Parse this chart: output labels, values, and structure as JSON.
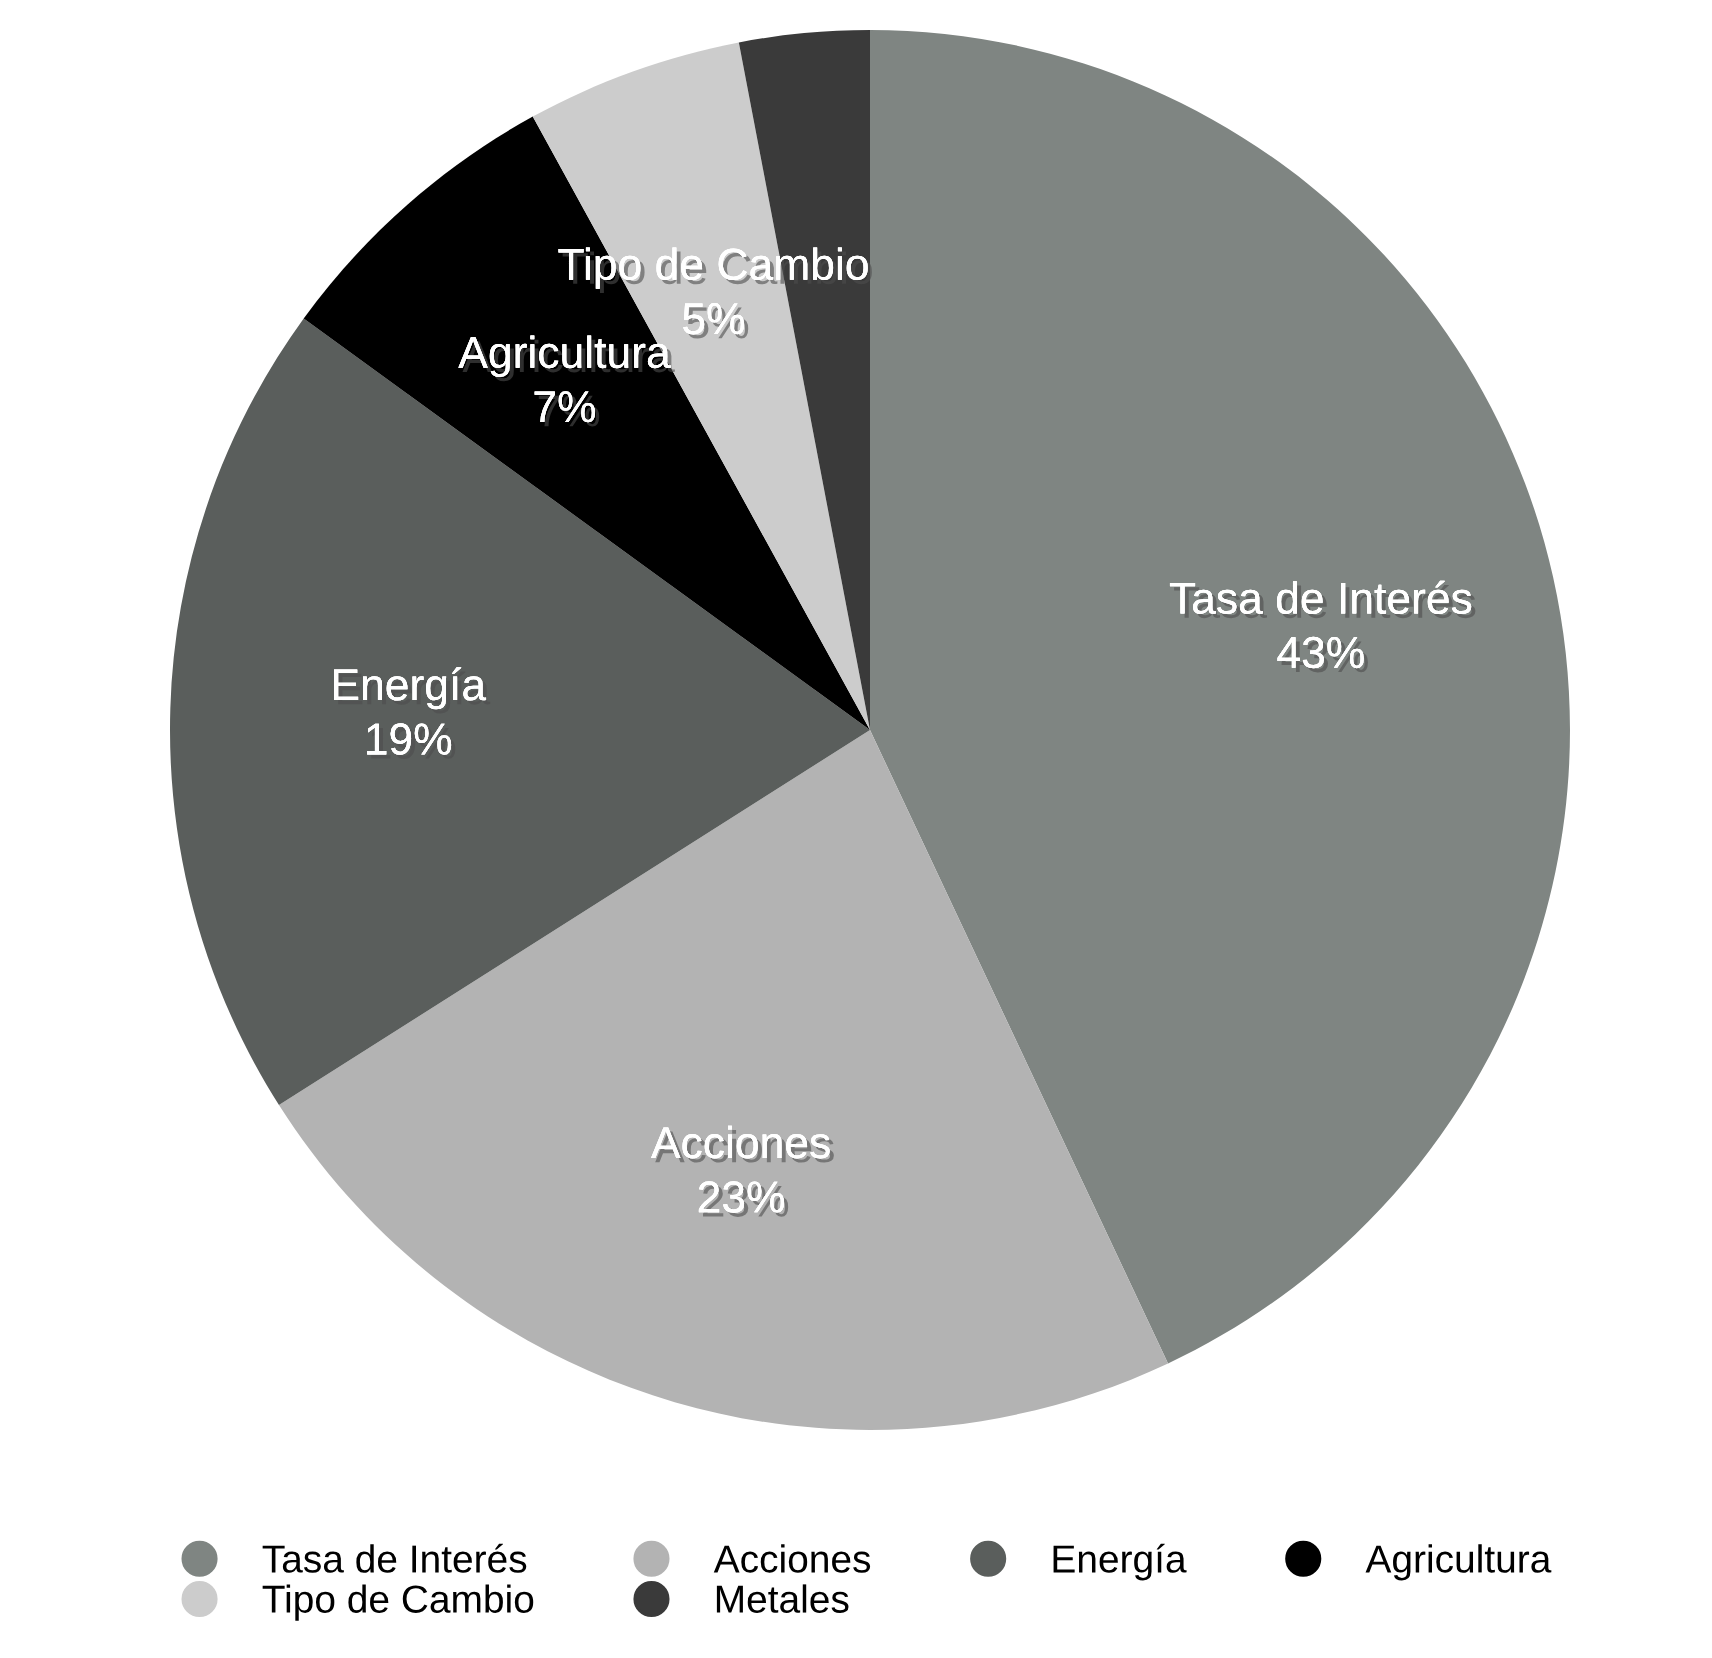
{
  "chart_data": {
    "type": "pie",
    "categories": [
      "Tasa de Interés",
      "Acciones",
      "Energía",
      "Agricultura",
      "Tipo de Cambio",
      "Metales"
    ],
    "values": [
      43,
      23,
      19,
      7,
      5,
      3
    ],
    "colors": [
      "#7f8582",
      "#b3b3b3",
      "#5a5e5c",
      "#000000",
      "#cccccc",
      "#3a3a3a"
    ],
    "value_labels": [
      "Tasa de Interés\n43%",
      "Acciones\n23%",
      "Energía\n19%",
      "Agricultura\n7%",
      "Tipo de Cambio\n5%",
      null
    ],
    "legend": "bottom"
  }
}
